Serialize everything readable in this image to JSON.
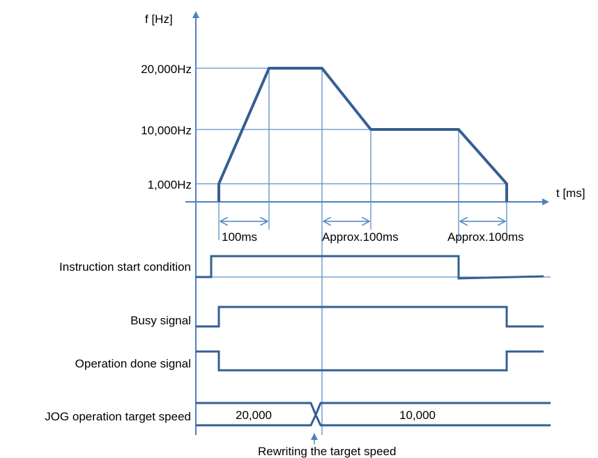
{
  "graph": {
    "y_axis_label": "f [Hz]",
    "x_axis_label": "t [ms]",
    "freq_labels": [
      "20,000Hz",
      "10,000Hz",
      "1,000Hz"
    ],
    "interval_labels": [
      "100ms",
      "Approx.100ms",
      "Approx.100ms"
    ]
  },
  "signals": {
    "instruction_start": "Instruction start condition",
    "busy": "Busy signal",
    "operation_done": "Operation done signal",
    "jog_target_speed": "JOG operation target speed"
  },
  "target_speed_values": [
    "20,000",
    "10,000"
  ],
  "annotation": "Rewriting the target speed",
  "colors": {
    "waveform": "#365f91",
    "guide_line": "#5b8fc9",
    "axis": "#4f81bd"
  }
}
